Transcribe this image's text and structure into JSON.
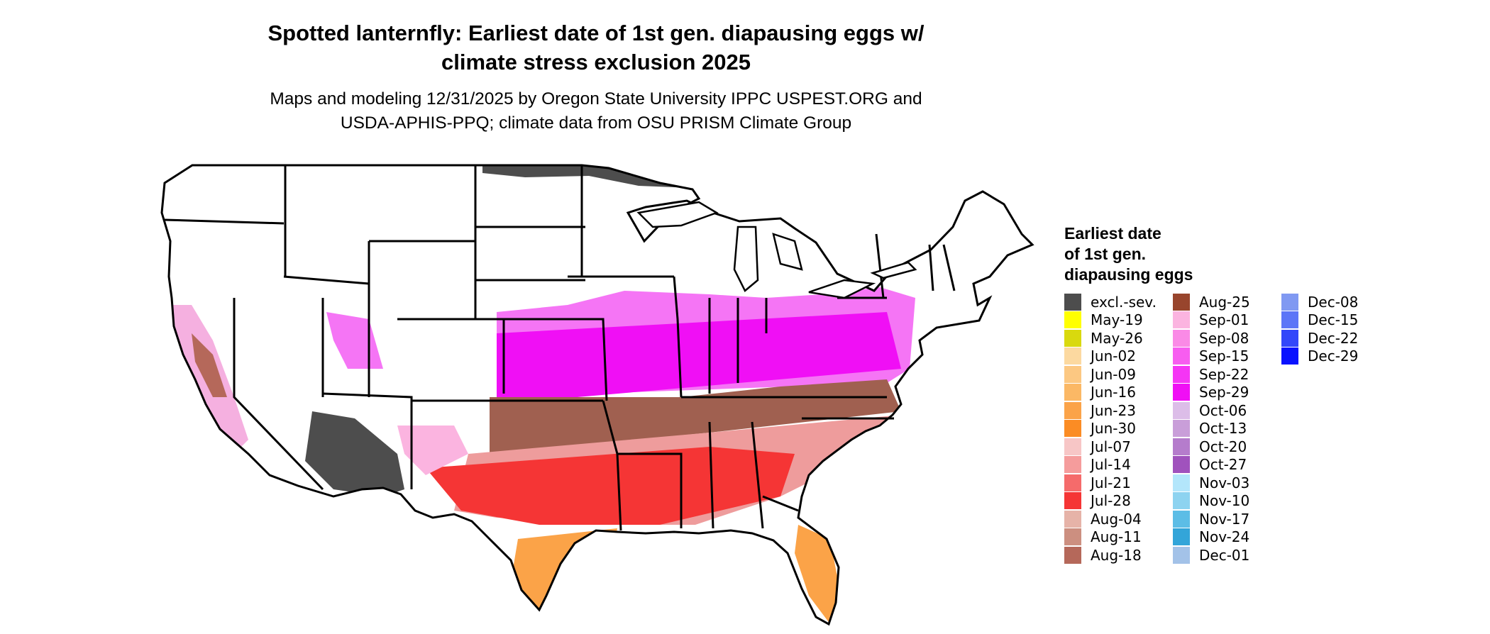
{
  "title_line1": "Spotted lanternfly: Earliest date of 1st gen. diapausing eggs w/",
  "title_line2": "climate stress exclusion 2025",
  "subtitle_line1": "Maps and modeling 12/31/2025 by Oregon State University IPPC USPEST.ORG and",
  "subtitle_line2": "USDA-APHIS-PPQ; climate data from OSU PRISM Climate Group",
  "legend": {
    "title_line1": "Earliest date",
    "title_line2": "of 1st gen.",
    "title_line3": "diapausing eggs",
    "columns": [
      [
        {
          "label": "excl.-sev.",
          "color": "#4d4d4d"
        },
        {
          "label": "May-19",
          "color": "#ffff00"
        },
        {
          "label": "May-26",
          "color": "#d9d90e"
        },
        {
          "label": "Jun-02",
          "color": "#fcd9a0"
        },
        {
          "label": "Jun-09",
          "color": "#fcc882"
        },
        {
          "label": "Jun-16",
          "color": "#fbb865"
        },
        {
          "label": "Jun-23",
          "color": "#fba348"
        },
        {
          "label": "Jun-30",
          "color": "#fb8c24"
        },
        {
          "label": "Jul-07",
          "color": "#f7c6c6"
        },
        {
          "label": "Jul-14",
          "color": "#f59c9c"
        },
        {
          "label": "Jul-21",
          "color": "#f56b6b"
        },
        {
          "label": "Jul-28",
          "color": "#f53535"
        },
        {
          "label": "Aug-04",
          "color": "#e6b3a8"
        },
        {
          "label": "Aug-11",
          "color": "#cc8f80"
        },
        {
          "label": "Aug-18",
          "color": "#b5685a"
        }
      ],
      [
        {
          "label": "Aug-25",
          "color": "#98452d"
        },
        {
          "label": "Sep-01",
          "color": "#fbb4e0"
        },
        {
          "label": "Sep-08",
          "color": "#fa8ae6"
        },
        {
          "label": "Sep-15",
          "color": "#f75df0"
        },
        {
          "label": "Sep-22",
          "color": "#f535f5"
        },
        {
          "label": "Sep-29",
          "color": "#f00ff5"
        },
        {
          "label": "Oct-06",
          "color": "#dcbde8"
        },
        {
          "label": "Oct-13",
          "color": "#c99ed9"
        },
        {
          "label": "Oct-20",
          "color": "#b57ccc"
        },
        {
          "label": "Oct-27",
          "color": "#a052bd"
        },
        {
          "label": "Nov-03",
          "color": "#b3e6fb"
        },
        {
          "label": "Nov-10",
          "color": "#8dd3f0"
        },
        {
          "label": "Nov-17",
          "color": "#5cbde6"
        },
        {
          "label": "Nov-24",
          "color": "#33a5d9"
        },
        {
          "label": "Dec-01",
          "color": "#a3c2e8"
        }
      ],
      [
        {
          "label": "Dec-08",
          "color": "#8099f2"
        },
        {
          "label": "Dec-15",
          "color": "#5c75f7"
        },
        {
          "label": "Dec-22",
          "color": "#3347fa"
        },
        {
          "label": "Dec-29",
          "color": "#0a12ff"
        }
      ]
    ]
  }
}
